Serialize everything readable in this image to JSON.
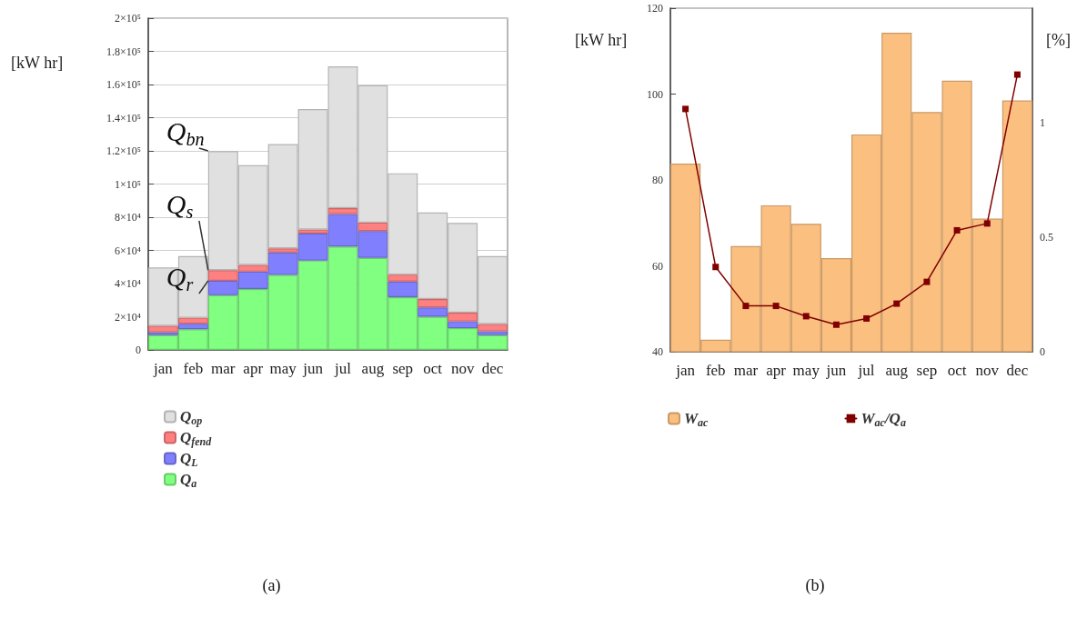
{
  "chart_data": [
    {
      "type": "bar",
      "title": "(a)",
      "ylabel": "[kW hr]",
      "categories": [
        "jan",
        "feb",
        "mar",
        "apr",
        "may",
        "jun",
        "jul",
        "aug",
        "sep",
        "oct",
        "nov",
        "dec"
      ],
      "stacked": true,
      "series": [
        {
          "name": "Q$_{a}$",
          "color": "#80ff80",
          "values": [
            8900,
            12500,
            33000,
            36700,
            45200,
            53900,
            62300,
            55500,
            31800,
            20000,
            13100,
            8900
          ]
        },
        {
          "name": "Q$_{L}$",
          "color": "#8080ff",
          "values": [
            1800,
            3300,
            8700,
            10500,
            13600,
            16300,
            19600,
            16200,
            9400,
            5600,
            4100,
            2400
          ]
        },
        {
          "name": "Q$_{fend}$",
          "color": "#ff8080",
          "values": [
            3800,
            3600,
            6400,
            4000,
            2400,
            2400,
            3600,
            5100,
            4200,
            5100,
            5300,
            4300
          ]
        },
        {
          "name": "Q$_{op}$",
          "color": "#e0e0e0",
          "values": [
            35200,
            37200,
            71700,
            60200,
            62900,
            72600,
            85500,
            82700,
            61100,
            52200,
            54100,
            41000
          ]
        }
      ],
      "ylim": [
        0,
        200000
      ],
      "yticks": [
        0,
        {
          "value": 20000,
          "label": "2×10⁴"
        },
        {
          "value": 40000,
          "label": "4×10⁴"
        },
        {
          "value": 60000,
          "label": "6×10⁴"
        },
        {
          "value": 80000,
          "label": "8×10⁴"
        },
        {
          "value": 100000,
          "label": "1×10⁵"
        },
        {
          "value": 120000,
          "label": "1.2×10⁵"
        },
        {
          "value": 140000,
          "label": "1.4×10⁵"
        },
        {
          "value": 160000,
          "label": "1.6×10⁵"
        },
        {
          "value": 180000,
          "label": "1.8×10⁵"
        },
        {
          "value": 200000,
          "label": "2×10⁵"
        }
      ],
      "annotations": [
        {
          "text": "Q$_{bn}$",
          "x": "mar",
          "y": 120000
        },
        {
          "text": "Q$_{s}$",
          "x": "mar",
          "y": 48000
        },
        {
          "text": "Q$_{r}$",
          "x": "mar",
          "y": 41700
        }
      ],
      "grid": "y",
      "legend": "bottom left"
    },
    {
      "type": "bar",
      "title": "(b)",
      "ylabel": "[kW hr]",
      "y2label": "[%]",
      "categories": [
        "jan",
        "feb",
        "mar",
        "apr",
        "may",
        "jun",
        "jul",
        "aug",
        "sep",
        "oct",
        "nov",
        "dec"
      ],
      "series": [
        {
          "name": "W$_{ac}$",
          "color": "#fbbf80",
          "values": [
            83.8,
            42.8,
            64.6,
            74.1,
            69.8,
            61.8,
            90.6,
            114.3,
            95.8,
            103.1,
            71.0,
            98.5
          ]
        },
        {
          "name": "W$_{ac}$/Q$_{a}$",
          "type": "line",
          "axis": "y2",
          "color": "#800000",
          "values": [
            1.06,
            0.37,
            0.2,
            0.2,
            0.155,
            0.118,
            0.145,
            0.21,
            0.305,
            0.53,
            0.56,
            1.21
          ]
        }
      ],
      "ylim": [
        40,
        120
      ],
      "yticks": [
        40,
        60,
        80,
        100,
        120
      ],
      "y2lim": [
        0,
        1.5
      ],
      "y2ticks": [
        0,
        0.5,
        1
      ],
      "marker": "square",
      "line_style": "solid",
      "grid": false,
      "legend": "bottom"
    }
  ]
}
